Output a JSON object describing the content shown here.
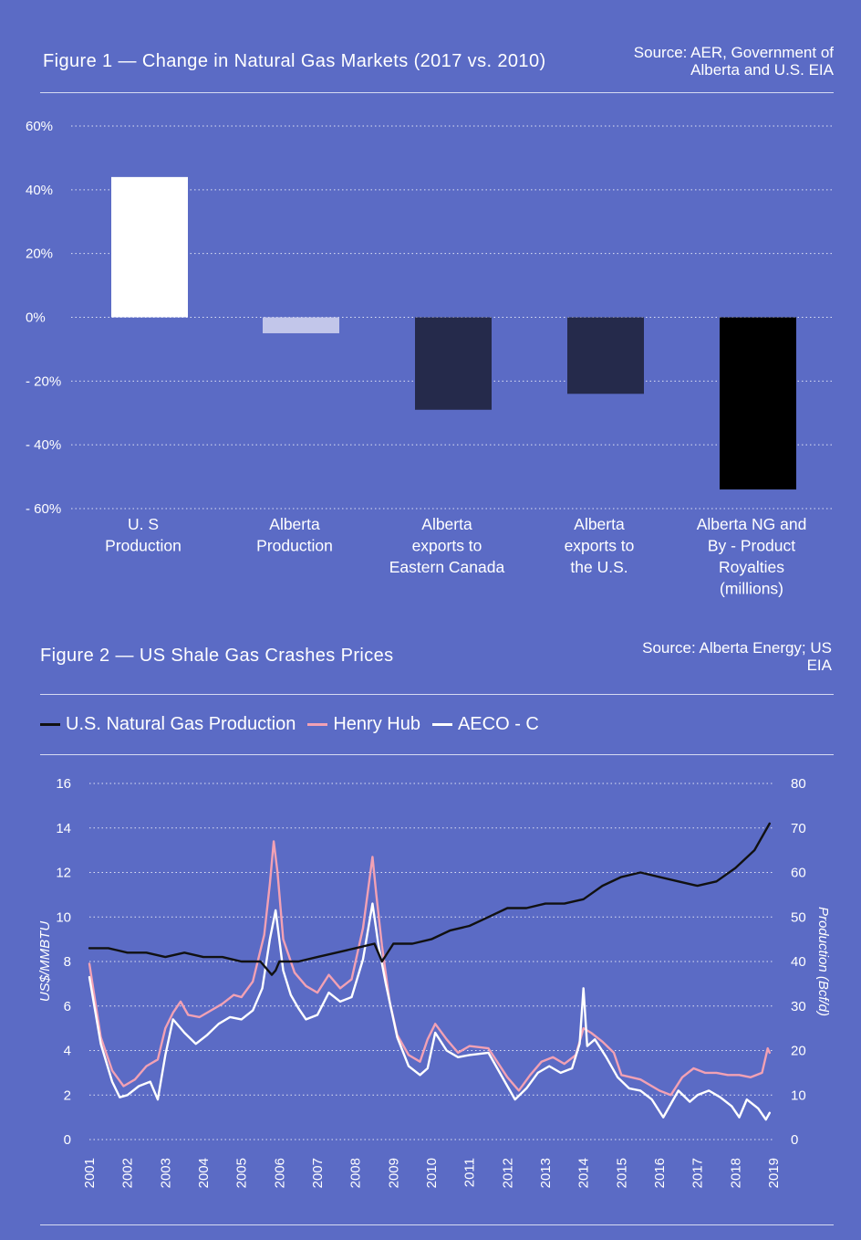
{
  "figure1": {
    "title": "Figure 1 — Change in Natural Gas Markets (2017 vs. 2010)",
    "source": [
      "Source: AER, Government of",
      "Alberta and U.S. EIA"
    ]
  },
  "figure2": {
    "title": "Figure 2 — US Shale Gas Crashes Prices",
    "source": [
      "Source: Alberta Energy; US",
      "EIA"
    ]
  },
  "colors": {
    "background": "#5b6bc5",
    "us_production_bar": "#ffffff",
    "alberta_production_bar": "#c2c6ea",
    "exports_bars": "#252a4b",
    "royalties_bar": "#000000",
    "henry_hub": "#f2a1b4",
    "aeco": "#ffffff",
    "us_production_line": "#111111"
  },
  "chart_data": [
    {
      "type": "bar",
      "title": "Figure 1 — Change in Natural Gas Markets (2017 vs. 2010)",
      "categories": [
        [
          "U. S",
          "Production"
        ],
        [
          "Alberta",
          "Production"
        ],
        [
          "Alberta",
          "exports to",
          "Eastern Canada"
        ],
        [
          "Alberta",
          "exports to",
          "the U.S."
        ],
        [
          "Alberta NG and",
          "By - Product",
          "Royalties",
          "(millions)"
        ]
      ],
      "values": [
        44,
        -5,
        -29,
        -24,
        -54
      ],
      "unit": "%",
      "ylim": [
        -60,
        60
      ],
      "yticks": [
        60,
        40,
        20,
        0,
        -20,
        -40,
        -60
      ],
      "ytick_labels": [
        "60%",
        "40%",
        "20%",
        "0%",
        "- 20%",
        "- 40%",
        "-  60%"
      ],
      "grid": true
    },
    {
      "type": "line",
      "title": "Figure 2 — US Shale Gas Crashes Prices",
      "ylabel": "US$/MMBTU",
      "y2label": "Production (Bcf/d)",
      "ylim": [
        0,
        16
      ],
      "y2lim": [
        0,
        80
      ],
      "yticks": [
        0,
        2,
        4,
        6,
        8,
        10,
        12,
        14,
        16
      ],
      "y2ticks": [
        0,
        10,
        20,
        30,
        40,
        50,
        60,
        70,
        80
      ],
      "xticks": [
        "2001",
        "2002",
        "2003",
        "2004",
        "2005",
        "2006",
        "2007",
        "2008",
        "2009",
        "2010",
        "2011",
        "2012",
        "2013",
        "2014",
        "2015",
        "2016",
        "2017",
        "2018",
        "2019"
      ],
      "legend_position": "top",
      "grid": true,
      "series": [
        {
          "name": "U.S. Natural Gas Production",
          "axis": "right",
          "x": [
            2001.0,
            2001.5,
            2002.0,
            2002.5,
            2003.0,
            2003.5,
            2004.0,
            2004.5,
            2005.0,
            2005.5,
            2005.8,
            2005.9,
            2006.0,
            2006.5,
            2007.0,
            2007.5,
            2008.0,
            2008.5,
            2008.7,
            2009.0,
            2009.5,
            2010.0,
            2010.5,
            2011.0,
            2011.5,
            2012.0,
            2012.5,
            2013.0,
            2013.5,
            2014.0,
            2014.5,
            2015.0,
            2015.5,
            2016.0,
            2016.5,
            2017.0,
            2017.5,
            2018.0,
            2018.5,
            2018.9
          ],
          "y": [
            43,
            43,
            42,
            42,
            41,
            42,
            41,
            41,
            40,
            40,
            37,
            38,
            40,
            40,
            41,
            42,
            43,
            44,
            40,
            44,
            44,
            45,
            47,
            48,
            50,
            52,
            52,
            53,
            53,
            54,
            57,
            59,
            60,
            59,
            58,
            57,
            58,
            61,
            65,
            71
          ]
        },
        {
          "name": "Henry Hub",
          "axis": "left",
          "x": [
            2001.0,
            2001.3,
            2001.6,
            2001.9,
            2002.2,
            2002.5,
            2002.8,
            2003.0,
            2003.2,
            2003.4,
            2003.6,
            2003.9,
            2004.2,
            2004.5,
            2004.8,
            2005.0,
            2005.3,
            2005.6,
            2005.75,
            2005.85,
            2005.95,
            2006.1,
            2006.4,
            2006.7,
            2007.0,
            2007.3,
            2007.6,
            2007.9,
            2008.2,
            2008.45,
            2008.55,
            2008.7,
            2008.9,
            2009.1,
            2009.4,
            2009.7,
            2009.9,
            2010.1,
            2010.4,
            2010.7,
            2011.0,
            2011.5,
            2012.0,
            2012.3,
            2012.6,
            2012.9,
            2013.2,
            2013.5,
            2013.8,
            2014.0,
            2014.2,
            2014.5,
            2014.8,
            2015.0,
            2015.5,
            2016.0,
            2016.3,
            2016.6,
            2016.9,
            2017.2,
            2017.5,
            2017.8,
            2018.1,
            2018.4,
            2018.7,
            2018.85,
            2018.9
          ],
          "y": [
            7.9,
            4.6,
            3.1,
            2.4,
            2.7,
            3.3,
            3.6,
            5.0,
            5.7,
            6.2,
            5.6,
            5.5,
            5.8,
            6.1,
            6.5,
            6.4,
            7.1,
            9.2,
            11.5,
            13.4,
            12.0,
            9.0,
            7.5,
            6.9,
            6.6,
            7.4,
            6.8,
            7.2,
            9.5,
            12.7,
            11.0,
            8.7,
            6.2,
            4.7,
            3.8,
            3.5,
            4.5,
            5.2,
            4.5,
            3.9,
            4.2,
            4.1,
            2.8,
            2.2,
            2.9,
            3.5,
            3.7,
            3.4,
            3.8,
            5.0,
            4.8,
            4.4,
            3.9,
            2.9,
            2.7,
            2.2,
            2.0,
            2.8,
            3.2,
            3.0,
            3.0,
            2.9,
            2.9,
            2.8,
            3.0,
            4.1,
            3.9
          ]
        },
        {
          "name": "AECO - C",
          "axis": "left",
          "x": [
            2001.0,
            2001.3,
            2001.6,
            2001.8,
            2002.0,
            2002.3,
            2002.6,
            2002.8,
            2003.0,
            2003.2,
            2003.5,
            2003.8,
            2004.1,
            2004.4,
            2004.7,
            2005.0,
            2005.3,
            2005.55,
            2005.75,
            2005.9,
            2006.1,
            2006.3,
            2006.5,
            2006.7,
            2007.0,
            2007.3,
            2007.6,
            2007.9,
            2008.2,
            2008.45,
            2008.6,
            2008.8,
            2009.1,
            2009.4,
            2009.7,
            2009.9,
            2010.1,
            2010.4,
            2010.7,
            2011.0,
            2011.5,
            2012.0,
            2012.2,
            2012.5,
            2012.8,
            2013.1,
            2013.4,
            2013.7,
            2013.9,
            2014.0,
            2014.1,
            2014.3,
            2014.6,
            2014.9,
            2015.2,
            2015.5,
            2015.8,
            2016.1,
            2016.3,
            2016.5,
            2016.8,
            2017.0,
            2017.3,
            2017.6,
            2017.9,
            2018.1,
            2018.3,
            2018.6,
            2018.8,
            2018.9
          ],
          "y": [
            7.3,
            4.3,
            2.6,
            1.9,
            2.0,
            2.4,
            2.6,
            1.8,
            3.8,
            5.4,
            4.8,
            4.3,
            4.7,
            5.2,
            5.5,
            5.4,
            5.8,
            6.8,
            9.0,
            10.3,
            7.6,
            6.5,
            5.9,
            5.4,
            5.6,
            6.6,
            6.2,
            6.4,
            8.1,
            10.6,
            8.8,
            7.0,
            4.6,
            3.3,
            2.9,
            3.2,
            4.8,
            4.0,
            3.7,
            3.8,
            3.9,
            2.4,
            1.8,
            2.3,
            3.0,
            3.3,
            3.0,
            3.2,
            4.3,
            6.8,
            4.2,
            4.5,
            3.7,
            2.8,
            2.3,
            2.2,
            1.8,
            1.0,
            1.6,
            2.2,
            1.7,
            2.0,
            2.2,
            1.9,
            1.5,
            1.0,
            1.8,
            1.4,
            0.9,
            1.2
          ]
        }
      ]
    }
  ]
}
